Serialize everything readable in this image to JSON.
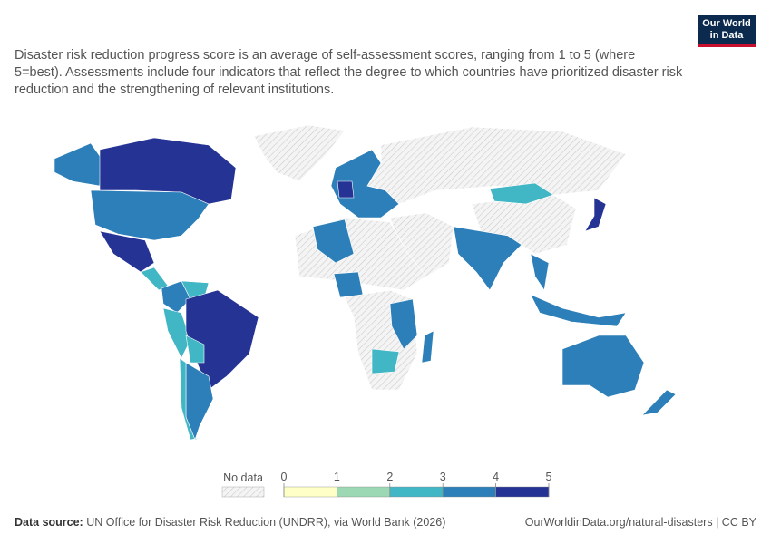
{
  "header": {
    "subtitle": "Disaster risk reduction progress score is an average of self-assessment scores, ranging from 1 to 5 (where 5=best). Assessments include four indicators that reflect the degree to which countries have prioritized disaster risk reduction and the strengthening of relevant institutions.",
    "logo": {
      "line1": "Our World",
      "line2": "in Data"
    }
  },
  "legend": {
    "no_data": "No data",
    "ticks": [
      0,
      1,
      2,
      3,
      4,
      5
    ],
    "colors": [
      "#ffffc8",
      "#9cd8b3",
      "#41b6c4",
      "#2c7fb8",
      "#253494"
    ]
  },
  "footer": {
    "source_label": "Data source:",
    "source": "UN Office for Disaster Risk Reduction (UNDRR), via World Bank (2026)",
    "url": "OurWorldinData.org/natural-disasters | CC BY"
  }
}
